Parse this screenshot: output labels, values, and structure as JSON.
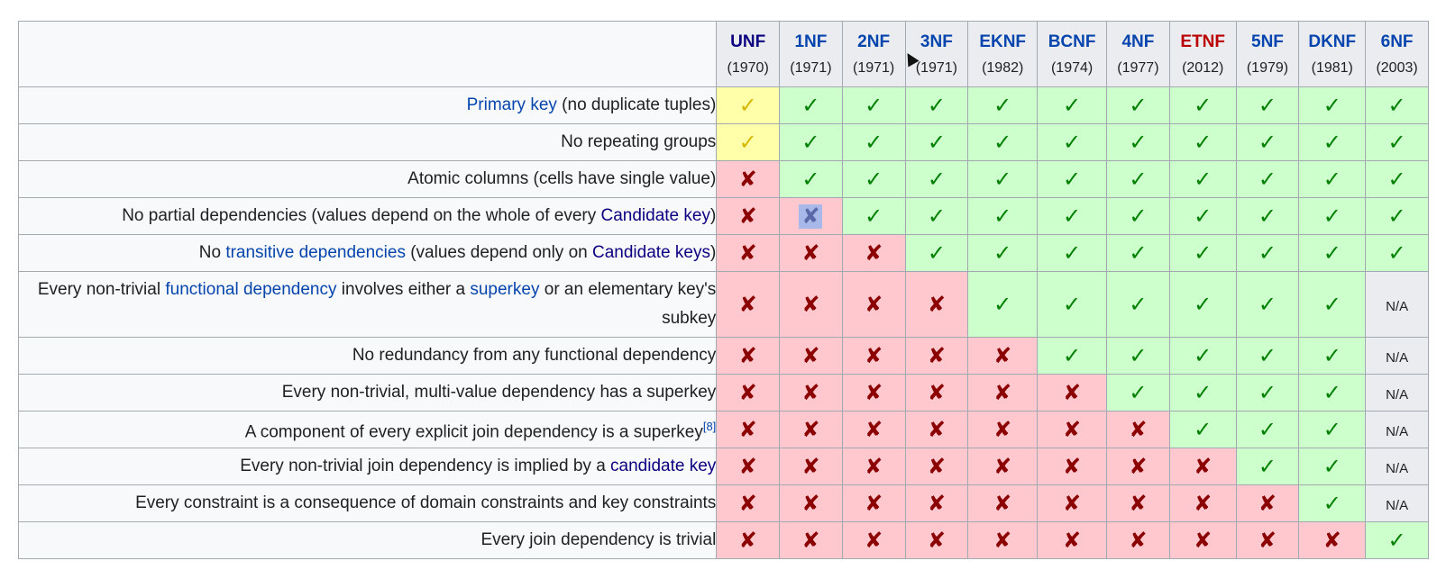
{
  "forms": [
    {
      "name": "UNF",
      "year": "(1970)",
      "style": "unf"
    },
    {
      "name": "1NF",
      "year": "(1971)",
      "style": "link"
    },
    {
      "name": "2NF",
      "year": "(1971)",
      "style": "link"
    },
    {
      "name": "3NF",
      "year": "(1971)",
      "style": "link"
    },
    {
      "name": "EKNF",
      "year": "(1982)",
      "style": "link"
    },
    {
      "name": "BCNF",
      "year": "(1974)",
      "style": "link"
    },
    {
      "name": "4NF",
      "year": "(1977)",
      "style": "link"
    },
    {
      "name": "ETNF",
      "year": "(2012)",
      "style": "new"
    },
    {
      "name": "5NF",
      "year": "(1979)",
      "style": "link"
    },
    {
      "name": "DKNF",
      "year": "(1981)",
      "style": "link"
    },
    {
      "name": "6NF",
      "year": "(2003)",
      "style": "link"
    }
  ],
  "symbols": {
    "yes": "✓",
    "no": "✘",
    "na": "N/A"
  },
  "colors": {
    "yes_bg": "#ccffcc",
    "partial_bg": "#ffffaa",
    "no_bg": "#ffc7ce",
    "na_bg": "#eaecf0",
    "link": "#0645ad"
  },
  "rows": [
    {
      "label": [
        {
          "t": "Primary key",
          "link": true
        },
        {
          "t": " (no duplicate tuples)"
        }
      ],
      "cells": [
        "part",
        "yes",
        "yes",
        "yes",
        "yes",
        "yes",
        "yes",
        "yes",
        "yes",
        "yes",
        "yes"
      ]
    },
    {
      "label": [
        {
          "t": "No repeating groups"
        }
      ],
      "cells": [
        "part",
        "yes",
        "yes",
        "yes",
        "yes",
        "yes",
        "yes",
        "yes",
        "yes",
        "yes",
        "yes"
      ]
    },
    {
      "label": [
        {
          "t": "Atomic columns (cells have single value)"
        }
      ],
      "cells": [
        "no",
        "yes",
        "yes",
        "yes",
        "yes",
        "yes",
        "yes",
        "yes",
        "yes",
        "yes",
        "yes"
      ]
    },
    {
      "label": [
        {
          "t": "No partial dependencies (values depend on the whole of every "
        },
        {
          "t": "Candidate key",
          "link": "dark"
        },
        {
          "t": ")"
        }
      ],
      "cells": [
        "no",
        "no-sel",
        "yes",
        "yes",
        "yes",
        "yes",
        "yes",
        "yes",
        "yes",
        "yes",
        "yes"
      ]
    },
    {
      "label": [
        {
          "t": "No "
        },
        {
          "t": "transitive dependencies",
          "link": true
        },
        {
          "t": " (values depend only on "
        },
        {
          "t": "Candidate keys",
          "link": "dark"
        },
        {
          "t": ")"
        }
      ],
      "cells": [
        "no",
        "no",
        "no",
        "yes",
        "yes",
        "yes",
        "yes",
        "yes",
        "yes",
        "yes",
        "yes"
      ]
    },
    {
      "label": [
        {
          "t": "Every non-trivial "
        },
        {
          "t": "functional dependency",
          "link": true
        },
        {
          "t": " involves either a "
        },
        {
          "t": "superkey",
          "link": true
        },
        {
          "t": " or an elementary key's subkey"
        }
      ],
      "cells": [
        "no",
        "no",
        "no",
        "no",
        "yes",
        "yes",
        "yes",
        "yes",
        "yes",
        "yes",
        "na"
      ],
      "tall": true
    },
    {
      "label": [
        {
          "t": "No redundancy from any functional dependency"
        }
      ],
      "cells": [
        "no",
        "no",
        "no",
        "no",
        "no",
        "yes",
        "yes",
        "yes",
        "yes",
        "yes",
        "na"
      ]
    },
    {
      "label": [
        {
          "t": "Every non-trivial, multi-value dependency has a superkey"
        }
      ],
      "cells": [
        "no",
        "no",
        "no",
        "no",
        "no",
        "no",
        "yes",
        "yes",
        "yes",
        "yes",
        "na"
      ]
    },
    {
      "label": [
        {
          "t": "A component of every explicit join dependency is a superkey"
        },
        {
          "t": "[8]",
          "sup": true
        }
      ],
      "cells": [
        "no",
        "no",
        "no",
        "no",
        "no",
        "no",
        "no",
        "yes",
        "yes",
        "yes",
        "na"
      ]
    },
    {
      "label": [
        {
          "t": "Every non-trivial join dependency is implied by a "
        },
        {
          "t": "candidate key",
          "link": "dark"
        }
      ],
      "cells": [
        "no",
        "no",
        "no",
        "no",
        "no",
        "no",
        "no",
        "no",
        "yes",
        "yes",
        "na"
      ]
    },
    {
      "label": [
        {
          "t": "Every constraint is a consequence of domain constraints and key constraints"
        }
      ],
      "cells": [
        "no",
        "no",
        "no",
        "no",
        "no",
        "no",
        "no",
        "no",
        "no",
        "yes",
        "na"
      ]
    },
    {
      "label": [
        {
          "t": "Every join dependency is trivial"
        }
      ],
      "cells": [
        "no",
        "no",
        "no",
        "no",
        "no",
        "no",
        "no",
        "no",
        "no",
        "no",
        "yes"
      ]
    }
  ]
}
